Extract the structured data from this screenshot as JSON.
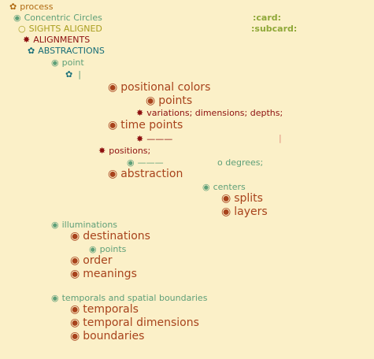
{
  "icons": {
    "flower": "✿",
    "circle_dot": "◉",
    "circle_open": "○",
    "burst": "✸"
  },
  "colors": {
    "background": "#fbf0c8",
    "orange": "#b06a12",
    "green": "#5e9f78",
    "olive": "#a99e1e",
    "red": "#8d0f0f",
    "teal": "#186e78",
    "brown": "#a8431c",
    "card": "#8fa838"
  },
  "tree": {
    "process": "process",
    "concentric": "Concentric Circles",
    "sights": "SIGHTS ALIGNED",
    "alignments": "ALIGNMENTS",
    "abstractions": "ABSTRACTIONS",
    "point": "point",
    "cursor": "|",
    "positional_colors": "positional colors",
    "points": "points",
    "variations": "variations; dimensions; depths;",
    "time_points": "time points",
    "dash1": "———",
    "vbar": "|",
    "positions": "positions;",
    "dash2": "———",
    "degrees": "o degrees;",
    "abstraction": "abstraction",
    "centers": "centers",
    "splits": "splits",
    "layers": "layers",
    "illuminations": "illuminations",
    "destinations": "destinations",
    "points2": "points",
    "order": "order",
    "meanings": "meanings",
    "temporals_spatial": "temporals and spatial boundaries",
    "temporals": "temporals",
    "temporal_dimensions": "temporal dimensions",
    "boundaries": "boundaries"
  },
  "cards": {
    "card": ":card:",
    "subcard": ":subcard:"
  }
}
